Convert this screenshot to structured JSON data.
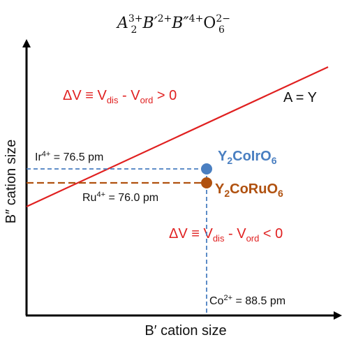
{
  "formula": {
    "base_A": "A",
    "sub_A": "2",
    "sup_A": "3+",
    "base_B1": "B′",
    "sup_B1": "2+",
    "base_B2": "B″",
    "sup_B2": "4+",
    "base_O": "O",
    "sub_O": "6",
    "sup_O": "2−"
  },
  "axes": {
    "y_label": "B″ cation size",
    "x_label": "B′ cation size"
  },
  "boundary": {
    "label": "A = Y",
    "color": "#e02020"
  },
  "regions": {
    "upper": {
      "lhs": "ΔV ≡ V",
      "sub1": "dis",
      "mid": " - V",
      "sub2": "ord",
      "rhs": " > 0"
    },
    "lower": {
      "lhs": "ΔV ≡ V",
      "sub1": "dis",
      "mid": " - V",
      "sub2": "ord",
      "rhs": " < 0"
    }
  },
  "points": {
    "ir": {
      "compound_parts": [
        "Y",
        "2",
        "CoIrO",
        "6"
      ],
      "color": "#4a7fc1"
    },
    "ru": {
      "compound_parts": [
        "Y",
        "2",
        "CoRuO",
        "6"
      ],
      "color": "#b0510f"
    }
  },
  "annotations": {
    "ir": {
      "ion": "Ir",
      "charge": "4+",
      "value": " = 76.5 pm"
    },
    "ru": {
      "ion": "Ru",
      "charge": "4+",
      "value": " = 76.0 pm"
    },
    "co": {
      "ion": "Co",
      "charge": "2+",
      "value": " = 88.5 pm"
    }
  }
}
